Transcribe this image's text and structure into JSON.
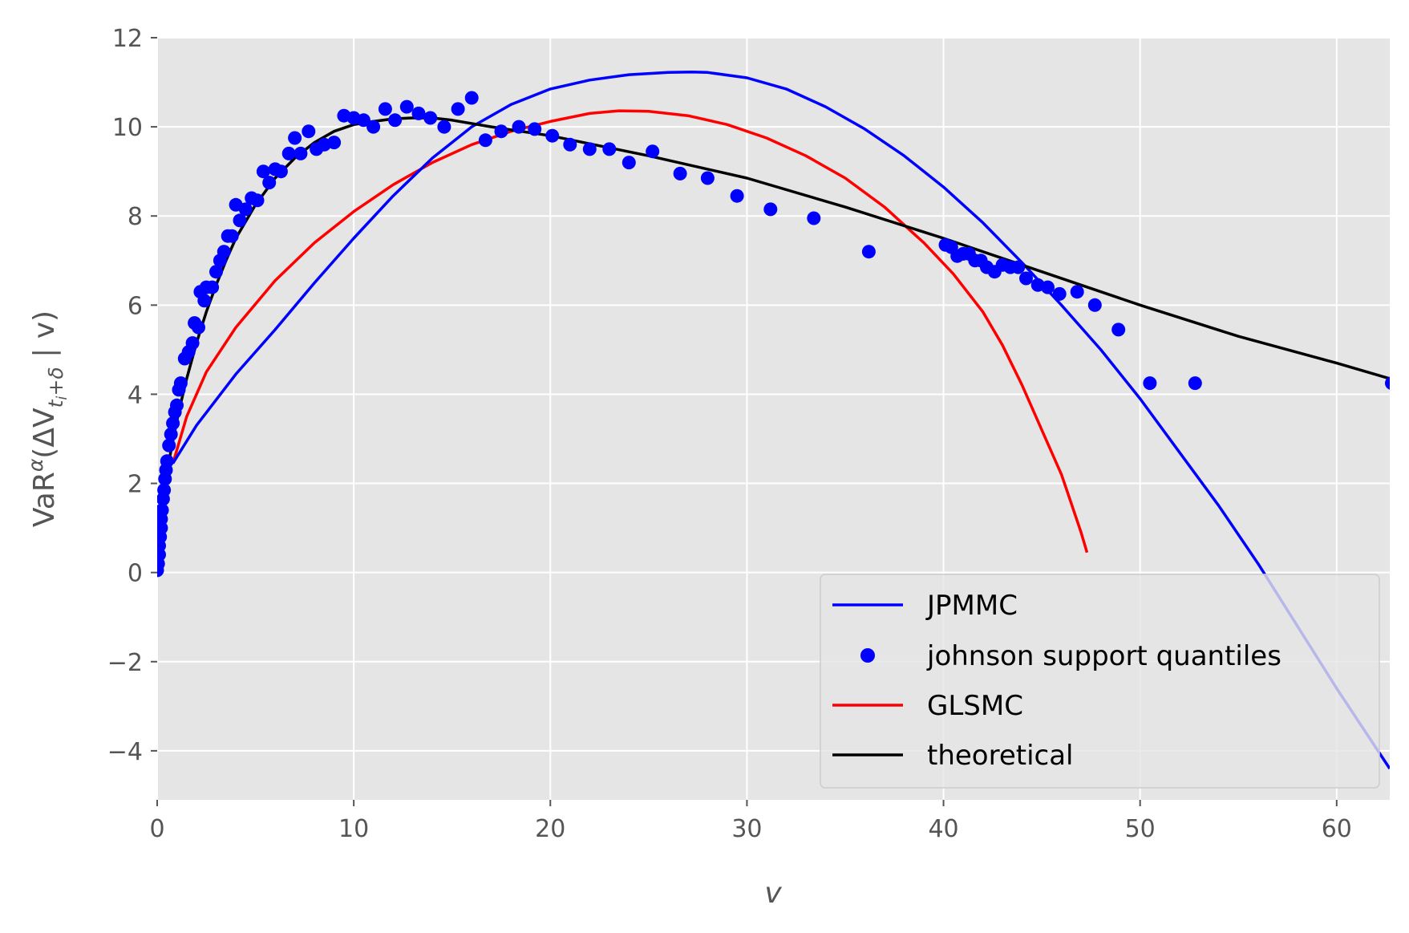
{
  "chart_data": {
    "type": "line",
    "title": "",
    "xlabel": "v",
    "ylabel": "VaR^α(ΔV_{t_i+δ} | v)",
    "ylabel_parts": {
      "base": "VaR",
      "sup": "α",
      "open": "(ΔV",
      "sub": "t",
      "sub2": "i",
      "subrest": "+δ",
      "close": " | v)"
    },
    "xlim": [
      0,
      62.7
    ],
    "ylim": [
      -5.1,
      12
    ],
    "xticks": [
      0,
      10,
      20,
      30,
      40,
      50,
      60
    ],
    "xtick_labels": [
      "0",
      "10",
      "20",
      "30",
      "40",
      "50",
      "60"
    ],
    "yticks": [
      -4,
      -2,
      0,
      2,
      4,
      6,
      8,
      10,
      12
    ],
    "ytick_labels": [
      "−4",
      "−2",
      "0",
      "2",
      "4",
      "6",
      "8",
      "10",
      "12"
    ],
    "grid": true,
    "legend_position": "lower right",
    "colors": {
      "jpmmc": "#0000ff",
      "points": "#0000ff",
      "glsmc": "#ff0000",
      "theoretical": "#000000",
      "axes_bg": "#e5e5e5",
      "grid": "#ffffff",
      "tick": "#555555"
    },
    "series": [
      {
        "name": "JPMMC",
        "kind": "line",
        "color": "#0000ff",
        "x": [
          0.8,
          2,
          4,
          6,
          8,
          10,
          12,
          14,
          16,
          18,
          20,
          22,
          24,
          26,
          27.2,
          28,
          30,
          32,
          34,
          36,
          38,
          40,
          42,
          44,
          46,
          48,
          50,
          52,
          54,
          56,
          58,
          60,
          62.7
        ],
        "y": [
          2.45,
          3.3,
          4.45,
          5.45,
          6.5,
          7.5,
          8.45,
          9.3,
          10.0,
          10.5,
          10.85,
          11.05,
          11.17,
          11.22,
          11.23,
          11.22,
          11.1,
          10.85,
          10.45,
          9.95,
          9.35,
          8.65,
          7.85,
          6.95,
          6.0,
          5.0,
          3.9,
          2.7,
          1.5,
          0.2,
          -1.2,
          -2.6,
          -4.4
        ]
      },
      {
        "name": "johnson support quantiles",
        "kind": "scatter",
        "color": "#0000ff",
        "x": [
          0.0,
          0.05,
          0.1,
          0.1,
          0.15,
          0.2,
          0.2,
          0.25,
          0.3,
          0.35,
          0.4,
          0.45,
          0.5,
          0.6,
          0.7,
          0.8,
          0.9,
          1.0,
          1.1,
          1.2,
          1.4,
          1.6,
          1.8,
          1.9,
          2.1,
          2.2,
          2.4,
          2.5,
          2.8,
          3.0,
          3.2,
          3.4,
          3.6,
          3.8,
          4.0,
          4.2,
          4.5,
          4.8,
          5.1,
          5.4,
          5.7,
          6.0,
          6.3,
          6.7,
          7.0,
          7.3,
          7.7,
          8.1,
          8.5,
          9.0,
          9.5,
          10.0,
          10.5,
          11.0,
          11.6,
          12.1,
          12.7,
          13.3,
          13.9,
          14.6,
          15.3,
          16.0,
          16.7,
          17.5,
          18.4,
          19.2,
          20.1,
          21.0,
          22.0,
          23.0,
          24.0,
          25.2,
          26.6,
          28.0,
          29.5,
          31.2,
          33.4,
          36.2,
          40.1,
          40.4,
          40.7,
          41.0,
          41.3,
          41.6,
          41.9,
          42.2,
          42.6,
          43.0,
          43.4,
          43.8,
          44.2,
          44.8,
          45.3,
          45.9,
          46.8,
          47.7,
          48.9,
          50.5,
          52.8,
          62.8
        ],
        "y": [
          0.05,
          0.2,
          0.4,
          0.6,
          0.8,
          1.0,
          1.2,
          1.4,
          1.65,
          1.85,
          2.1,
          2.3,
          2.5,
          2.85,
          3.1,
          3.35,
          3.6,
          3.75,
          4.1,
          4.25,
          4.8,
          4.95,
          5.15,
          5.6,
          5.5,
          6.3,
          6.1,
          6.4,
          6.4,
          6.75,
          7.0,
          7.2,
          7.55,
          7.55,
          8.25,
          7.9,
          8.15,
          8.4,
          8.35,
          9.0,
          8.75,
          9.05,
          9.0,
          9.4,
          9.75,
          9.4,
          9.9,
          9.5,
          9.6,
          9.65,
          10.25,
          10.2,
          10.15,
          10.0,
          10.4,
          10.15,
          10.45,
          10.3,
          10.2,
          10.0,
          10.4,
          10.65,
          9.7,
          9.9,
          10.0,
          9.95,
          9.8,
          9.6,
          9.5,
          9.5,
          9.2,
          9.45,
          8.95,
          8.85,
          8.45,
          8.15,
          7.95,
          7.2,
          7.35,
          7.3,
          7.1,
          7.15,
          7.15,
          7.0,
          7.0,
          6.85,
          6.75,
          6.9,
          6.85,
          6.85,
          6.6,
          6.45,
          6.4,
          6.25,
          6.3,
          6.0,
          5.45,
          4.25,
          4.25,
          4.25
        ]
      },
      {
        "name": "GLSMC",
        "kind": "line",
        "color": "#ff0000",
        "x": [
          0.8,
          1.5,
          2.5,
          4,
          6,
          8,
          10,
          12,
          14,
          16,
          18,
          20,
          22,
          23.5,
          25,
          27,
          29,
          31,
          33,
          35,
          37,
          39,
          40.5,
          42,
          43,
          44,
          45,
          46,
          46.5,
          47,
          47.2,
          47.3
        ],
        "y": [
          2.45,
          3.5,
          4.5,
          5.5,
          6.55,
          7.4,
          8.1,
          8.7,
          9.2,
          9.6,
          9.9,
          10.12,
          10.3,
          10.36,
          10.35,
          10.25,
          10.05,
          9.75,
          9.35,
          8.85,
          8.2,
          7.4,
          6.7,
          5.85,
          5.1,
          4.2,
          3.2,
          2.2,
          1.55,
          0.9,
          0.6,
          0.45
        ]
      },
      {
        "name": "theoretical",
        "kind": "line",
        "color": "#000000",
        "x": [
          0.0,
          0.1,
          0.2,
          0.4,
          0.6,
          0.8,
          1.0,
          1.2,
          1.5,
          2.0,
          2.5,
          3.0,
          3.5,
          4.0,
          5.0,
          6.0,
          7.0,
          8.0,
          9.0,
          10.0,
          11.0,
          12.0,
          13.0,
          14.0,
          15.0,
          17.0,
          20.0,
          25.0,
          30.0,
          35.0,
          40.0,
          45.0,
          50.0,
          55.0,
          60.0,
          62.7
        ],
        "y": [
          0.0,
          0.8,
          1.3,
          1.95,
          2.5,
          2.95,
          3.4,
          3.8,
          4.35,
          5.15,
          5.85,
          6.45,
          7.0,
          7.5,
          8.25,
          8.85,
          9.3,
          9.65,
          9.9,
          10.05,
          10.12,
          10.18,
          10.2,
          10.2,
          10.15,
          10.0,
          9.8,
          9.35,
          8.85,
          8.2,
          7.5,
          6.75,
          6.0,
          5.3,
          4.7,
          4.35
        ]
      }
    ]
  }
}
